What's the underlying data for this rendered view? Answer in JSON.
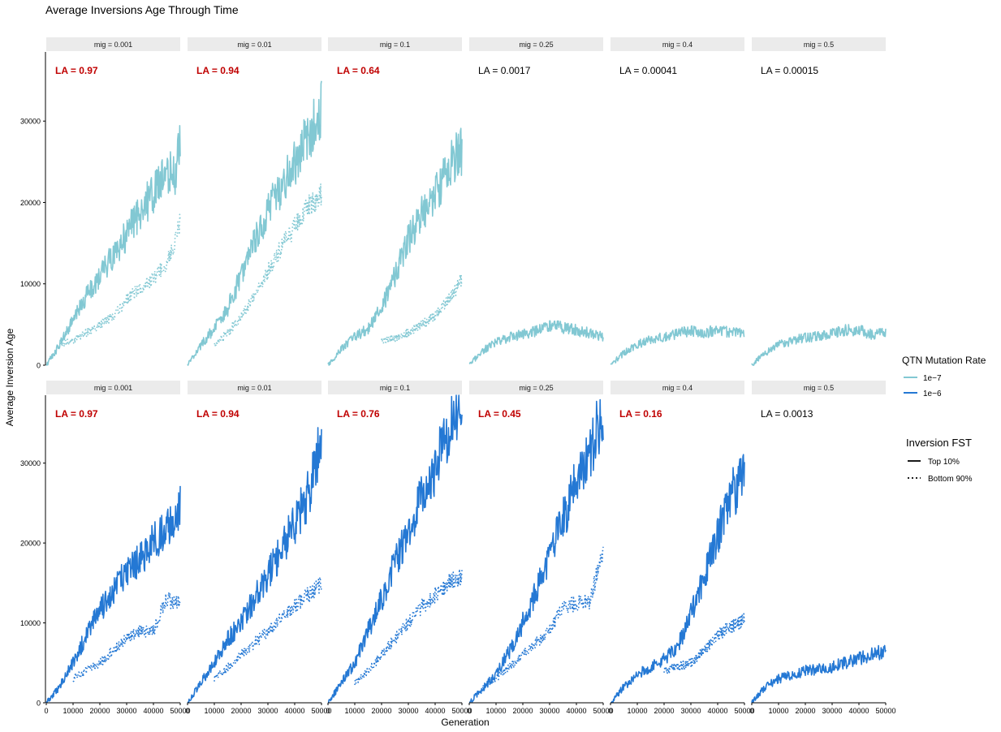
{
  "chart_data": {
    "type": "line",
    "title": "Average Inversions Age Through Time",
    "xlabel": "Generation",
    "ylabel": "Average Inversion Age",
    "xlim": [
      0,
      50000
    ],
    "x_ticks": [
      0,
      10000,
      20000,
      30000,
      40000,
      50000
    ],
    "x_tick_labels": [
      "0",
      "10000",
      "20000",
      "30000",
      "40000",
      "50000"
    ],
    "rows": [
      {
        "ylim": [
          0,
          38500
        ],
        "y_ticks": [
          0,
          10000,
          20000,
          30000
        ],
        "y_tick_labels": [
          "0",
          "10000",
          "20000",
          "30000"
        ],
        "panels": [
          {
            "strip": "mig = 0.001",
            "la": "LA = 0.97",
            "la_highlight": true,
            "series": [
              {
                "mutation_rate": "1e−7",
                "fst": "Top 10%",
                "x": [
                  0,
                  5000,
                  10000,
                  15000,
                  20000,
                  25000,
                  30000,
                  35000,
                  40000,
                  45000,
                  48000,
                  50000
                ],
                "y": [
                  0,
                  2500,
                  5500,
                  8500,
                  11000,
                  13500,
                  16000,
                  19000,
                  21000,
                  23500,
                  23500,
                  27500
                ]
              },
              {
                "mutation_rate": "1e−7",
                "fst": "Bottom 90%",
                "x": [
                  5000,
                  10000,
                  15000,
                  20000,
                  25000,
                  30000,
                  35000,
                  40000,
                  45000,
                  48000,
                  50000
                ],
                "y": [
                  2500,
                  3000,
                  4000,
                  5000,
                  6000,
                  8000,
                  9500,
                  10500,
                  12500,
                  15000,
                  17500
                ]
              }
            ]
          },
          {
            "strip": "mig = 0.01",
            "la": "LA = 0.94",
            "la_highlight": true,
            "series": [
              {
                "mutation_rate": "1e−7",
                "fst": "Top 10%",
                "x": [
                  0,
                  5000,
                  10000,
                  15000,
                  20000,
                  25000,
                  30000,
                  35000,
                  40000,
                  45000,
                  50000
                ],
                "y": [
                  0,
                  2500,
                  4500,
                  7000,
                  11000,
                  15000,
                  19000,
                  22000,
                  25000,
                  28000,
                  31500
                ]
              },
              {
                "mutation_rate": "1e−7",
                "fst": "Bottom 90%",
                "x": [
                  10000,
                  15000,
                  20000,
                  25000,
                  30000,
                  35000,
                  40000,
                  45000,
                  50000
                ],
                "y": [
                  2500,
                  4000,
                  6000,
                  8500,
                  11500,
                  14500,
                  17000,
                  19500,
                  21000
                ]
              }
            ]
          },
          {
            "strip": "mig = 0.1",
            "la": "LA = 0.64",
            "la_highlight": true,
            "series": [
              {
                "mutation_rate": "1e−7",
                "fst": "Top 10%",
                "x": [
                  0,
                  5000,
                  10000,
                  15000,
                  20000,
                  25000,
                  30000,
                  35000,
                  40000,
                  45000,
                  50000
                ],
                "y": [
                  0,
                  2000,
                  3500,
                  4500,
                  7000,
                  11000,
                  15500,
                  18500,
                  21000,
                  24500,
                  26500
                ]
              },
              {
                "mutation_rate": "1e−7",
                "fst": "Bottom 90%",
                "x": [
                  20000,
                  25000,
                  30000,
                  35000,
                  40000,
                  45000,
                  50000
                ],
                "y": [
                  3000,
                  3300,
                  4000,
                  5000,
                  6000,
                  8000,
                  10500
                ]
              }
            ]
          },
          {
            "strip": "mig = 0.25",
            "la": "LA = 0.0017",
            "la_highlight": false,
            "series": [
              {
                "mutation_rate": "1e−7",
                "fst": "Top 10%",
                "x": [
                  0,
                  5000,
                  10000,
                  15000,
                  20000,
                  25000,
                  30000,
                  35000,
                  40000,
                  45000,
                  50000
                ],
                "y": [
                  0,
                  1800,
                  2800,
                  3400,
                  3800,
                  4200,
                  4800,
                  4600,
                  4300,
                  3900,
                  3500
                ]
              }
            ]
          },
          {
            "strip": "mig = 0.4",
            "la": "LA = 0.00041",
            "la_highlight": false,
            "series": [
              {
                "mutation_rate": "1e−7",
                "fst": "Top 10%",
                "x": [
                  0,
                  5000,
                  10000,
                  15000,
                  20000,
                  25000,
                  30000,
                  35000,
                  40000,
                  45000,
                  50000
                ],
                "y": [
                  0,
                  1500,
                  2600,
                  3100,
                  3500,
                  3900,
                  4200,
                  4000,
                  4300,
                  4000,
                  4000
                ]
              }
            ]
          },
          {
            "strip": "mig = 0.5",
            "la": "LA = 0.00015",
            "la_highlight": false,
            "series": [
              {
                "mutation_rate": "1e−7",
                "fst": "Top 10%",
                "x": [
                  0,
                  5000,
                  10000,
                  15000,
                  20000,
                  25000,
                  30000,
                  35000,
                  40000,
                  45000,
                  50000
                ],
                "y": [
                  0,
                  1500,
                  2500,
                  3000,
                  3400,
                  3600,
                  3900,
                  4300,
                  4300,
                  3800,
                  3900
                ]
              }
            ]
          }
        ]
      },
      {
        "ylim": [
          0,
          38500
        ],
        "y_ticks": [
          0,
          10000,
          20000,
          30000
        ],
        "y_tick_labels": [
          "0",
          "10000",
          "20000",
          "30000"
        ],
        "panels": [
          {
            "strip": "mig = 0.001",
            "la": "LA = 0.97",
            "la_highlight": true,
            "series": [
              {
                "mutation_rate": "1e−6",
                "fst": "Top 10%",
                "x": [
                  0,
                  5000,
                  10000,
                  15000,
                  20000,
                  25000,
                  30000,
                  35000,
                  40000,
                  45000,
                  48000,
                  50000
                ],
                "y": [
                  0,
                  2000,
                  5000,
                  8500,
                  11500,
                  14000,
                  16500,
                  18000,
                  20000,
                  22000,
                  23000,
                  25000
                ]
              },
              {
                "mutation_rate": "1e−6",
                "fst": "Bottom 90%",
                "x": [
                  10000,
                  15000,
                  20000,
                  25000,
                  30000,
                  35000,
                  40000,
                  45000,
                  48000,
                  50000
                ],
                "y": [
                  3000,
                  4000,
                  5000,
                  6500,
                  8000,
                  9000,
                  9000,
                  13000,
                  12500,
                  13000
                ]
              }
            ]
          },
          {
            "strip": "mig = 0.01",
            "la": "LA = 0.94",
            "la_highlight": true,
            "series": [
              {
                "mutation_rate": "1e−6",
                "fst": "Top 10%",
                "x": [
                  0,
                  5000,
                  10000,
                  15000,
                  20000,
                  25000,
                  30000,
                  35000,
                  40000,
                  45000,
                  50000
                ],
                "y": [
                  0,
                  2500,
                  5000,
                  8000,
                  10000,
                  13000,
                  16000,
                  19000,
                  22500,
                  26000,
                  33500
                ]
              },
              {
                "mutation_rate": "1e−6",
                "fst": "Bottom 90%",
                "x": [
                  10000,
                  15000,
                  20000,
                  25000,
                  30000,
                  35000,
                  40000,
                  45000,
                  50000
                ],
                "y": [
                  3000,
                  4500,
                  6000,
                  7500,
                  9000,
                  10500,
                  12000,
                  13500,
                  15000
                ]
              }
            ]
          },
          {
            "strip": "mig = 0.1",
            "la": "LA = 0.76",
            "la_highlight": true,
            "series": [
              {
                "mutation_rate": "1e−6",
                "fst": "Top 10%",
                "x": [
                  0,
                  5000,
                  10000,
                  15000,
                  20000,
                  25000,
                  30000,
                  35000,
                  40000,
                  45000,
                  50000
                ],
                "y": [
                  0,
                  2500,
                  5000,
                  9000,
                  13000,
                  17500,
                  21500,
                  25500,
                  29500,
                  33500,
                  37500
                ]
              },
              {
                "mutation_rate": "1e−6",
                "fst": "Bottom 90%",
                "x": [
                  10000,
                  15000,
                  20000,
                  25000,
                  30000,
                  35000,
                  40000,
                  45000,
                  50000
                ],
                "y": [
                  2500,
                  4000,
                  6000,
                  8000,
                  10000,
                  12000,
                  13500,
                  15000,
                  16000
                ]
              }
            ]
          },
          {
            "strip": "mig = 0.25",
            "la": "LA = 0.45",
            "la_highlight": true,
            "series": [
              {
                "mutation_rate": "1e−6",
                "fst": "Top 10%",
                "x": [
                  0,
                  5000,
                  10000,
                  15000,
                  20000,
                  25000,
                  30000,
                  35000,
                  40000,
                  45000,
                  50000
                ],
                "y": [
                  0,
                  1800,
                  3500,
                  6500,
                  10000,
                  14000,
                  18500,
                  23000,
                  27500,
                  31500,
                  36500
                ]
              },
              {
                "mutation_rate": "1e−6",
                "fst": "Bottom 90%",
                "x": [
                  5000,
                  10000,
                  15000,
                  20000,
                  25000,
                  30000,
                  35000,
                  40000,
                  45000,
                  50000
                ],
                "y": [
                  2000,
                  3000,
                  4500,
                  6000,
                  7500,
                  9000,
                  12000,
                  12500,
                  12500,
                  19500
                ]
              }
            ]
          },
          {
            "strip": "mig = 0.4",
            "la": "LA = 0.16",
            "la_highlight": true,
            "series": [
              {
                "mutation_rate": "1e−6",
                "fst": "Top 10%",
                "x": [
                  0,
                  5000,
                  10000,
                  15000,
                  20000,
                  25000,
                  30000,
                  35000,
                  40000,
                  45000,
                  50000
                ],
                "y": [
                  0,
                  2000,
                  3500,
                  4500,
                  5500,
                  7000,
                  11000,
                  16000,
                  21000,
                  26000,
                  28000
                ]
              },
              {
                "mutation_rate": "1e−6",
                "fst": "Bottom 90%",
                "x": [
                  20000,
                  25000,
                  30000,
                  35000,
                  40000,
                  45000,
                  50000
                ],
                "y": [
                  4000,
                  4500,
                  5000,
                  6500,
                  8500,
                  9500,
                  10500
                ]
              }
            ]
          },
          {
            "strip": "mig = 0.5",
            "la": "LA = 0.0013",
            "la_highlight": false,
            "series": [
              {
                "mutation_rate": "1e−6",
                "fst": "Top 10%",
                "x": [
                  0,
                  5000,
                  10000,
                  15000,
                  20000,
                  25000,
                  30000,
                  35000,
                  40000,
                  45000,
                  50000
                ],
                "y": [
                  0,
                  2000,
                  3000,
                  3500,
                  4000,
                  4200,
                  4500,
                  5000,
                  5500,
                  6000,
                  6500
                ]
              }
            ]
          }
        ]
      }
    ],
    "legend": {
      "placement": "right",
      "color_title": "QTN Mutation Rate",
      "color_items": [
        {
          "label": "1e−7",
          "color": "#82c8d3"
        },
        {
          "label": "1e−6",
          "color": "#2478d4"
        }
      ],
      "linetype_title": "Inversion FST",
      "linetype_items": [
        {
          "label": "Top 10%",
          "style": "solid"
        },
        {
          "label": "Bottom 90%",
          "style": "dotted"
        }
      ]
    },
    "colors": {
      "la_highlight": "#c00000",
      "strip_background": "#ebebeb"
    }
  }
}
